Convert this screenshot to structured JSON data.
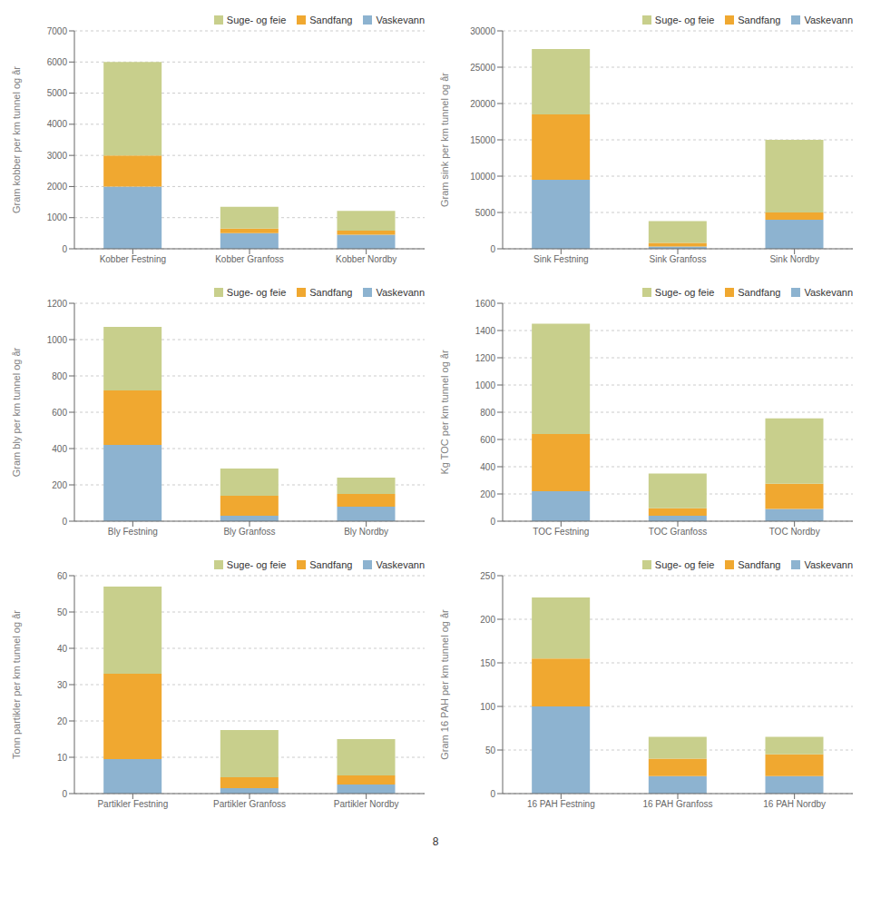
{
  "chart_data": [
    {
      "type": "bar",
      "stacked": true,
      "grid": true,
      "legend": "upper right",
      "ylabel": "Gram kobber per km tunnel og år",
      "ylim": [
        0,
        7000
      ],
      "yticks": [
        0,
        1000,
        2000,
        3000,
        4000,
        5000,
        6000,
        7000
      ],
      "categories": [
        "Kobber Festning",
        "Kobber Granfoss",
        "Kobber Nordby"
      ],
      "series": [
        {
          "name": "Vaskevann",
          "color": "#8db3d0",
          "values": [
            2000,
            500,
            450
          ]
        },
        {
          "name": "Sandfang",
          "color": "#f0a830",
          "values": [
            1000,
            150,
            130
          ]
        },
        {
          "name": "Suge- og feie",
          "color": "#c8cf8c",
          "values": [
            3000,
            700,
            640
          ]
        }
      ]
    },
    {
      "type": "bar",
      "stacked": true,
      "grid": true,
      "legend": "upper right",
      "ylabel": "Gram sink per km tunnel og år",
      "ylim": [
        0,
        30000
      ],
      "yticks": [
        0,
        5000,
        10000,
        15000,
        20000,
        25000,
        30000
      ],
      "categories": [
        "Sink Festning",
        "Sink Granfoss",
        "Sink Nordby"
      ],
      "series": [
        {
          "name": "Vaskevann",
          "color": "#8db3d0",
          "values": [
            9500,
            300,
            4000
          ]
        },
        {
          "name": "Sandfang",
          "color": "#f0a830",
          "values": [
            9000,
            500,
            1000
          ]
        },
        {
          "name": "Suge- og feie",
          "color": "#c8cf8c",
          "values": [
            9000,
            3000,
            10000
          ]
        }
      ]
    },
    {
      "type": "bar",
      "stacked": true,
      "grid": true,
      "legend": "upper right",
      "ylabel": "Gram bly per km tunnel og år",
      "ylim": [
        0,
        1200
      ],
      "yticks": [
        0,
        200,
        400,
        600,
        800,
        1000,
        1200
      ],
      "categories": [
        "Bly Festning",
        "Bly Granfoss",
        "Bly Nordby"
      ],
      "series": [
        {
          "name": "Vaskevann",
          "color": "#8db3d0",
          "values": [
            420,
            30,
            80
          ]
        },
        {
          "name": "Sandfang",
          "color": "#f0a830",
          "values": [
            300,
            110,
            70
          ]
        },
        {
          "name": "Suge- og feie",
          "color": "#c8cf8c",
          "values": [
            350,
            150,
            90
          ]
        }
      ]
    },
    {
      "type": "bar",
      "stacked": true,
      "grid": true,
      "legend": "upper right",
      "ylabel": "Kg TOC per km tunnel og år",
      "ylim": [
        0,
        1600
      ],
      "yticks": [
        0,
        200,
        400,
        600,
        800,
        1000,
        1200,
        1400,
        1600
      ],
      "categories": [
        "TOC Festning",
        "TOC Granfoss",
        "TOC Nordby"
      ],
      "series": [
        {
          "name": "Vaskevann",
          "color": "#8db3d0",
          "values": [
            220,
            40,
            90
          ]
        },
        {
          "name": "Sandfang",
          "color": "#f0a830",
          "values": [
            420,
            55,
            185
          ]
        },
        {
          "name": "Suge- og feie",
          "color": "#c8cf8c",
          "values": [
            810,
            255,
            480
          ]
        }
      ]
    },
    {
      "type": "bar",
      "stacked": true,
      "grid": true,
      "legend": "upper right",
      "ylabel": "Tonn partikler per km tunnel og år",
      "ylim": [
        0,
        60
      ],
      "yticks": [
        0,
        10,
        20,
        30,
        40,
        50,
        60
      ],
      "categories": [
        "Partikler Festning",
        "Partikler Granfoss",
        "Partikler Nordby"
      ],
      "series": [
        {
          "name": "Vaskevann",
          "color": "#8db3d0",
          "values": [
            9.5,
            1.5,
            2.5
          ]
        },
        {
          "name": "Sandfang",
          "color": "#f0a830",
          "values": [
            23.5,
            3.0,
            2.5
          ]
        },
        {
          "name": "Suge- og feie",
          "color": "#c8cf8c",
          "values": [
            24.0,
            13.0,
            10.0
          ]
        }
      ]
    },
    {
      "type": "bar",
      "stacked": true,
      "grid": true,
      "legend": "upper right",
      "ylabel": "Gram 16 PAH per km tunnel og år",
      "ylim": [
        0,
        250
      ],
      "yticks": [
        0,
        50,
        100,
        150,
        200,
        250
      ],
      "categories": [
        "16 PAH Festning",
        "16 PAH Granfoss",
        "16 PAH Nordby"
      ],
      "series": [
        {
          "name": "Vaskevann",
          "color": "#8db3d0",
          "values": [
            100,
            20,
            20
          ]
        },
        {
          "name": "Sandfang",
          "color": "#f0a830",
          "values": [
            55,
            20,
            25
          ]
        },
        {
          "name": "Suge- og feie",
          "color": "#c8cf8c",
          "values": [
            70,
            25,
            20
          ]
        }
      ]
    }
  ],
  "annotations": [
    "8"
  ]
}
